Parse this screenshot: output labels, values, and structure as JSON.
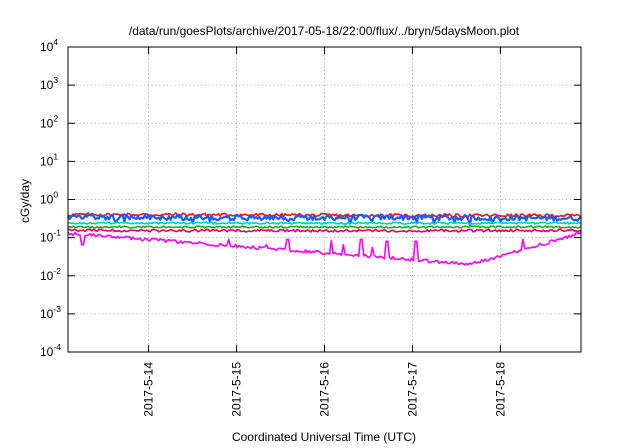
{
  "chart_data": {
    "type": "line",
    "title": "/data/run/goesPlots/archive/2017-05-18/22:00/flux/../bryn/5daysMoon.plot",
    "xlabel": "Coordinated Universal Time (UTC)",
    "ylabel": "cGy/day",
    "yscale": "log",
    "ylim": [
      0.0001,
      10000
    ],
    "y_ticks": [
      {
        "base": "10",
        "exp": "-4",
        "value": 0.0001
      },
      {
        "base": "10",
        "exp": "-3",
        "value": 0.001
      },
      {
        "base": "10",
        "exp": "-2",
        "value": 0.01
      },
      {
        "base": "10",
        "exp": "-1",
        "value": 0.1
      },
      {
        "base": "10",
        "exp": "0",
        "value": 1
      },
      {
        "base": "10",
        "exp": "1",
        "value": 10
      },
      {
        "base": "10",
        "exp": "2",
        "value": 100
      },
      {
        "base": "10",
        "exp": "3",
        "value": 1000
      },
      {
        "base": "10",
        "exp": "4",
        "value": 10000
      }
    ],
    "xlim": [
      "2017-05-13T02:00",
      "2017-05-18T22:00"
    ],
    "x_ticks": [
      "2017-5-14",
      "2017-5-15",
      "2017-5-16",
      "2017-5-17",
      "2017-5-18"
    ],
    "grid": true,
    "series": [
      {
        "color": "#ee1111",
        "base": 0.4,
        "noise": 0.1,
        "dips": [],
        "key_points": [
          [
            "2017-05-13T02:00",
            0.4
          ],
          [
            "2017-05-14T12:00",
            0.4
          ],
          [
            "2017-05-16T12:00",
            0.38
          ],
          [
            "2017-05-18T22:00",
            0.38
          ]
        ]
      },
      {
        "color": "#1a5cff",
        "base": 0.34,
        "noise": 0.16,
        "dips": [],
        "key_points": [
          [
            "2017-05-13T02:00",
            0.35
          ],
          [
            "2017-05-15T00:00",
            0.33
          ],
          [
            "2017-05-17T00:00",
            0.34
          ],
          [
            "2017-05-18T22:00",
            0.32
          ]
        ]
      },
      {
        "color": "#00cccc",
        "base": 0.24,
        "noise": 0.06,
        "dips": [],
        "key_points": [
          [
            "2017-05-13T02:00",
            0.24
          ],
          [
            "2017-05-15T12:00",
            0.24
          ],
          [
            "2017-05-18T22:00",
            0.24
          ]
        ]
      },
      {
        "color": "#22aa22",
        "base": 0.19,
        "noise": 0.06,
        "dips": [],
        "key_points": [
          [
            "2017-05-13T02:00",
            0.19
          ],
          [
            "2017-05-16T00:00",
            0.19
          ],
          [
            "2017-05-18T22:00",
            0.19
          ]
        ]
      },
      {
        "color": "#e0006e",
        "base": 0.155,
        "noise": 0.08,
        "dips": [],
        "key_points": [
          [
            "2017-05-13T02:00",
            0.155
          ],
          [
            "2017-05-16T00:00",
            0.15
          ],
          [
            "2017-05-18T22:00",
            0.155
          ]
        ]
      },
      {
        "color": "#ff00ff",
        "base": 0.13,
        "noise": 0.1,
        "dips": [
          [
            "2017-05-13T06:00",
            0.065
          ],
          [
            "2017-05-13T22:00",
            0.085
          ],
          [
            "2017-05-14T22:00",
            0.09
          ],
          [
            "2017-05-15T08:00",
            0.065
          ],
          [
            "2017-05-15T14:00",
            0.09
          ],
          [
            "2017-05-16T02:00",
            0.085
          ],
          [
            "2017-05-16T05:00",
            0.065
          ],
          [
            "2017-05-16T10:00",
            0.09
          ],
          [
            "2017-05-16T13:00",
            0.055
          ],
          [
            "2017-05-16T17:00",
            0.08
          ],
          [
            "2017-05-17T01:00",
            0.08
          ],
          [
            "2017-05-17T16:00",
            0.02
          ],
          [
            "2017-05-18T06:00",
            0.09
          ]
        ],
        "key_points": [
          [
            "2017-05-13T02:00",
            0.13
          ],
          [
            "2017-05-17T16:00",
            0.02
          ],
          [
            "2017-05-18T22:00",
            0.13
          ]
        ]
      }
    ]
  }
}
